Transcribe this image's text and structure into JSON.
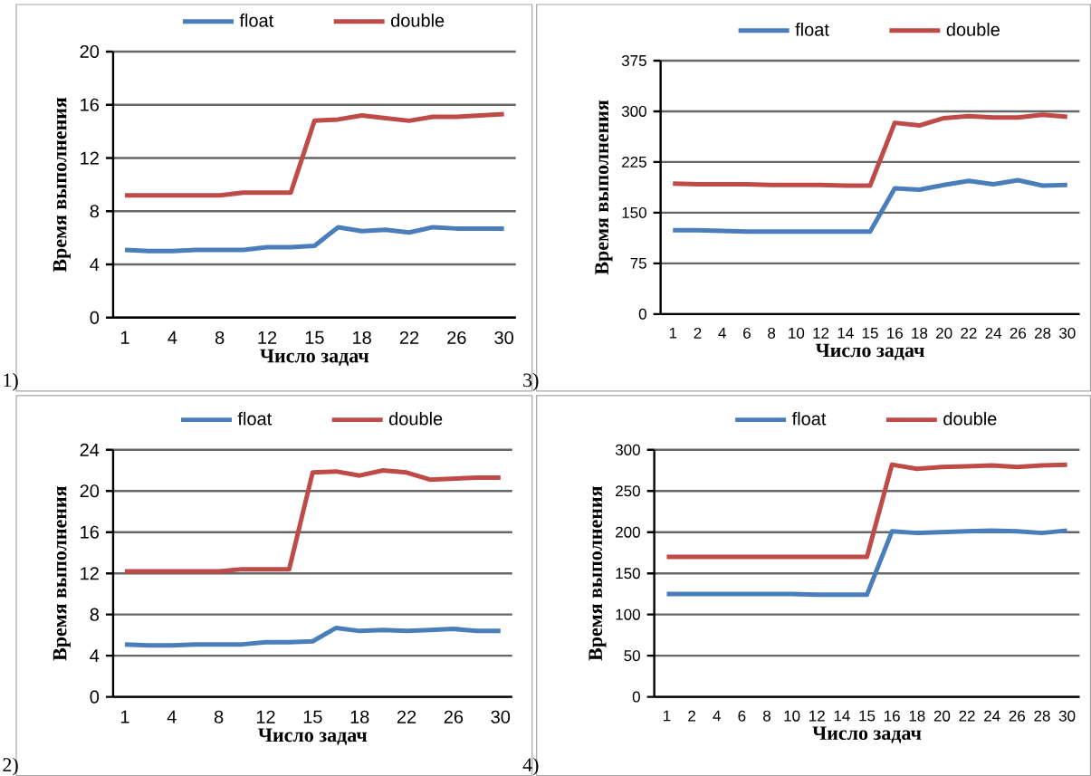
{
  "chart_data": [
    {
      "type": "line",
      "xlabel": "Число задач",
      "ylabel": "Время выполнения",
      "annotations": [
        "1)"
      ],
      "categories": [
        "1",
        null,
        "4",
        null,
        "8",
        null,
        "12",
        null,
        "15",
        null,
        "18",
        null,
        "22",
        null,
        "26",
        null,
        "30"
      ],
      "ylim": [
        0,
        20
      ],
      "yticks": [
        0,
        4,
        8,
        12,
        16,
        20
      ],
      "grid": "y",
      "legend": "top",
      "series": [
        {
          "name": "float",
          "color": "#4a7ebb",
          "values": [
            5.1,
            5.0,
            5.0,
            5.1,
            5.1,
            5.1,
            5.3,
            5.3,
            5.4,
            6.8,
            6.5,
            6.6,
            6.4,
            6.8,
            6.7,
            6.7,
            6.7
          ]
        },
        {
          "name": "double",
          "color": "#be4b48",
          "values": [
            9.2,
            9.2,
            9.2,
            9.2,
            9.2,
            9.4,
            9.4,
            9.4,
            14.8,
            14.9,
            15.2,
            15.0,
            14.8,
            15.1,
            15.1,
            15.2,
            15.3
          ]
        }
      ]
    },
    {
      "type": "line",
      "xlabel": "Число задач",
      "ylabel": "Время выполнения",
      "annotations": [
        "3)"
      ],
      "categories": [
        "1",
        "2",
        "4",
        "6",
        "8",
        "10",
        "12",
        "14",
        "15",
        "16",
        "18",
        "20",
        "22",
        "24",
        "26",
        "28",
        "30"
      ],
      "ylim": [
        0,
        375
      ],
      "yticks": [
        0,
        75,
        150,
        225,
        300,
        375
      ],
      "grid": "y",
      "legend": "top",
      "series": [
        {
          "name": "float",
          "color": "#4a7ebb",
          "values": [
            124,
            124,
            123,
            122,
            122,
            122,
            122,
            122,
            122,
            186,
            184,
            191,
            197,
            192,
            198,
            190,
            191
          ]
        },
        {
          "name": "double",
          "color": "#be4b48",
          "values": [
            193,
            192,
            192,
            192,
            191,
            191,
            191,
            190,
            190,
            283,
            279,
            290,
            293,
            291,
            291,
            295,
            292
          ]
        }
      ]
    },
    {
      "type": "line",
      "xlabel": "Число задач",
      "ylabel": "Время выполнения",
      "annotations": [
        "2)"
      ],
      "categories": [
        "1",
        null,
        "4",
        null,
        "8",
        null,
        "12",
        null,
        "15",
        null,
        "18",
        null,
        "22",
        null,
        "26",
        null,
        "30"
      ],
      "ylim": [
        0,
        24
      ],
      "yticks": [
        0,
        4,
        8,
        12,
        16,
        20,
        24
      ],
      "grid": "y",
      "legend": "top",
      "series": [
        {
          "name": "float",
          "color": "#4a7ebb",
          "values": [
            5.1,
            5.0,
            5.0,
            5.1,
            5.1,
            5.1,
            5.3,
            5.3,
            5.4,
            6.7,
            6.4,
            6.5,
            6.4,
            6.5,
            6.6,
            6.4,
            6.4
          ]
        },
        {
          "name": "double",
          "color": "#be4b48",
          "values": [
            12.2,
            12.2,
            12.2,
            12.2,
            12.2,
            12.4,
            12.4,
            12.4,
            21.8,
            21.9,
            21.5,
            22.0,
            21.8,
            21.1,
            21.2,
            21.3,
            21.3
          ]
        }
      ]
    },
    {
      "type": "line",
      "xlabel": "Число задач",
      "ylabel": "Время выполнения",
      "annotations": [
        "4)"
      ],
      "categories": [
        "1",
        "2",
        "4",
        "6",
        "8",
        "10",
        "12",
        "14",
        "15",
        "16",
        "18",
        "20",
        "22",
        "24",
        "26",
        "28",
        "30"
      ],
      "ylim": [
        0,
        300
      ],
      "yticks": [
        0,
        50,
        100,
        150,
        200,
        250,
        300
      ],
      "grid": "y",
      "legend": "top",
      "series": [
        {
          "name": "float",
          "color": "#4a7ebb",
          "values": [
            125,
            125,
            125,
            125,
            125,
            125,
            124,
            124,
            124,
            201,
            199,
            200,
            201,
            202,
            201,
            199,
            202
          ]
        },
        {
          "name": "double",
          "color": "#be4b48",
          "values": [
            170,
            170,
            170,
            170,
            170,
            170,
            170,
            170,
            170,
            282,
            277,
            279,
            280,
            281,
            279,
            281,
            282
          ]
        }
      ]
    }
  ]
}
